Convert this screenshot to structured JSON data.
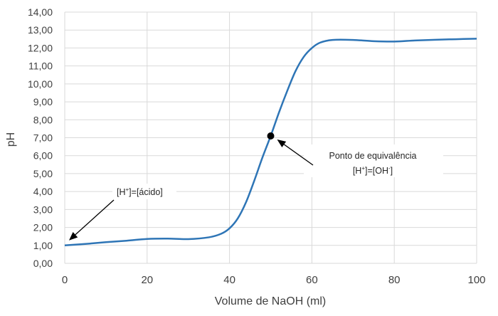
{
  "chart_data": {
    "type": "line",
    "title": "",
    "xlabel": "Volume de NaOH (ml)",
    "ylabel": "pH",
    "xlim": [
      0,
      100
    ],
    "ylim": [
      0,
      14
    ],
    "x_ticks": [
      "0",
      "20",
      "40",
      "60",
      "80",
      "100"
    ],
    "y_ticks": [
      "0,00",
      "1,00",
      "2,00",
      "3,00",
      "4,00",
      "5,00",
      "6,00",
      "7,00",
      "8,00",
      "9,00",
      "10,00",
      "11,00",
      "12,00",
      "13,00",
      "14,00"
    ],
    "grid": true,
    "line_color": "#2e75b6",
    "series": [
      {
        "x": [
          0,
          5,
          10,
          15,
          20,
          25,
          30,
          35,
          38,
          40,
          42,
          44,
          46,
          48,
          50,
          52,
          54,
          56,
          58,
          60,
          62,
          65,
          70,
          75,
          80,
          85,
          90,
          95,
          100
        ],
        "y": [
          1.0,
          1.08,
          1.18,
          1.26,
          1.36,
          1.38,
          1.35,
          1.45,
          1.65,
          1.95,
          2.5,
          3.4,
          4.6,
          5.9,
          7.1,
          8.4,
          9.6,
          10.7,
          11.5,
          12.0,
          12.3,
          12.45,
          12.45,
          12.38,
          12.36,
          12.42,
          12.46,
          12.49,
          12.52
        ]
      }
    ],
    "marker": {
      "x": 50,
      "y": 7.1
    },
    "annotations": [
      {
        "text": "[H+]=[ácido]",
        "parts": [
          "[H",
          "+",
          "]=[ácido]"
        ],
        "target_x": 0,
        "target_y": 1.0
      },
      {
        "text": "Ponto de equivalência",
        "line2_parts": [
          "[H",
          "+",
          "]=[OH",
          "-",
          "]"
        ],
        "target_x": 50,
        "target_y": 7.1
      }
    ]
  }
}
